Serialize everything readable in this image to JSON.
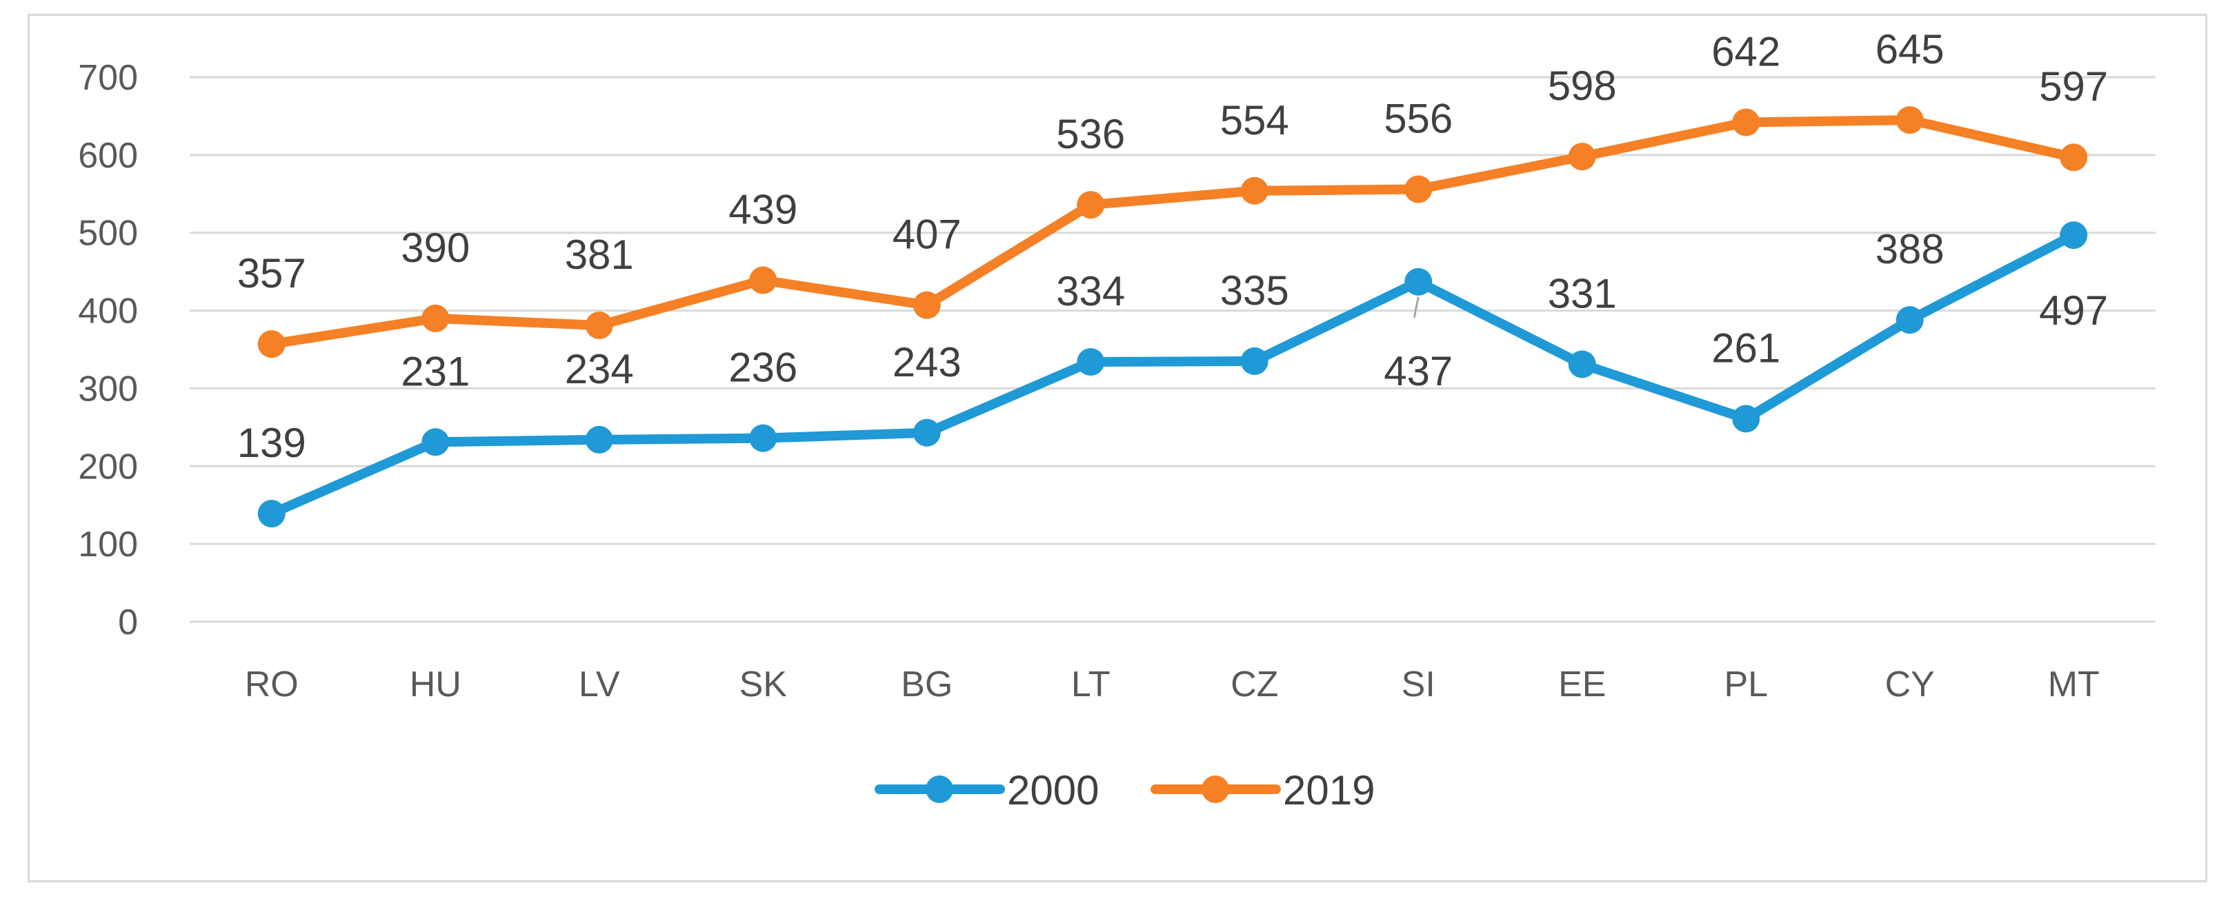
{
  "chart_data": {
    "type": "line",
    "title": "",
    "xlabel": "",
    "ylabel": "",
    "categories": [
      "RO",
      "HU",
      "LV",
      "SK",
      "BG",
      "LT",
      "CZ",
      "SI",
      "EE",
      "PL",
      "CY",
      "MT"
    ],
    "ylim": [
      0,
      700
    ],
    "yticks": [
      0,
      100,
      200,
      300,
      400,
      500,
      600,
      700
    ],
    "grid": true,
    "legend_position": "bottom",
    "series": [
      {
        "name": "2000",
        "color": "#1f9ad6",
        "values": [
          139,
          231,
          234,
          236,
          243,
          334,
          335,
          437,
          331,
          261,
          388,
          497
        ]
      },
      {
        "name": "2019",
        "color": "#f58025",
        "values": [
          357,
          390,
          381,
          439,
          407,
          536,
          554,
          556,
          598,
          642,
          645,
          597
        ]
      }
    ]
  }
}
